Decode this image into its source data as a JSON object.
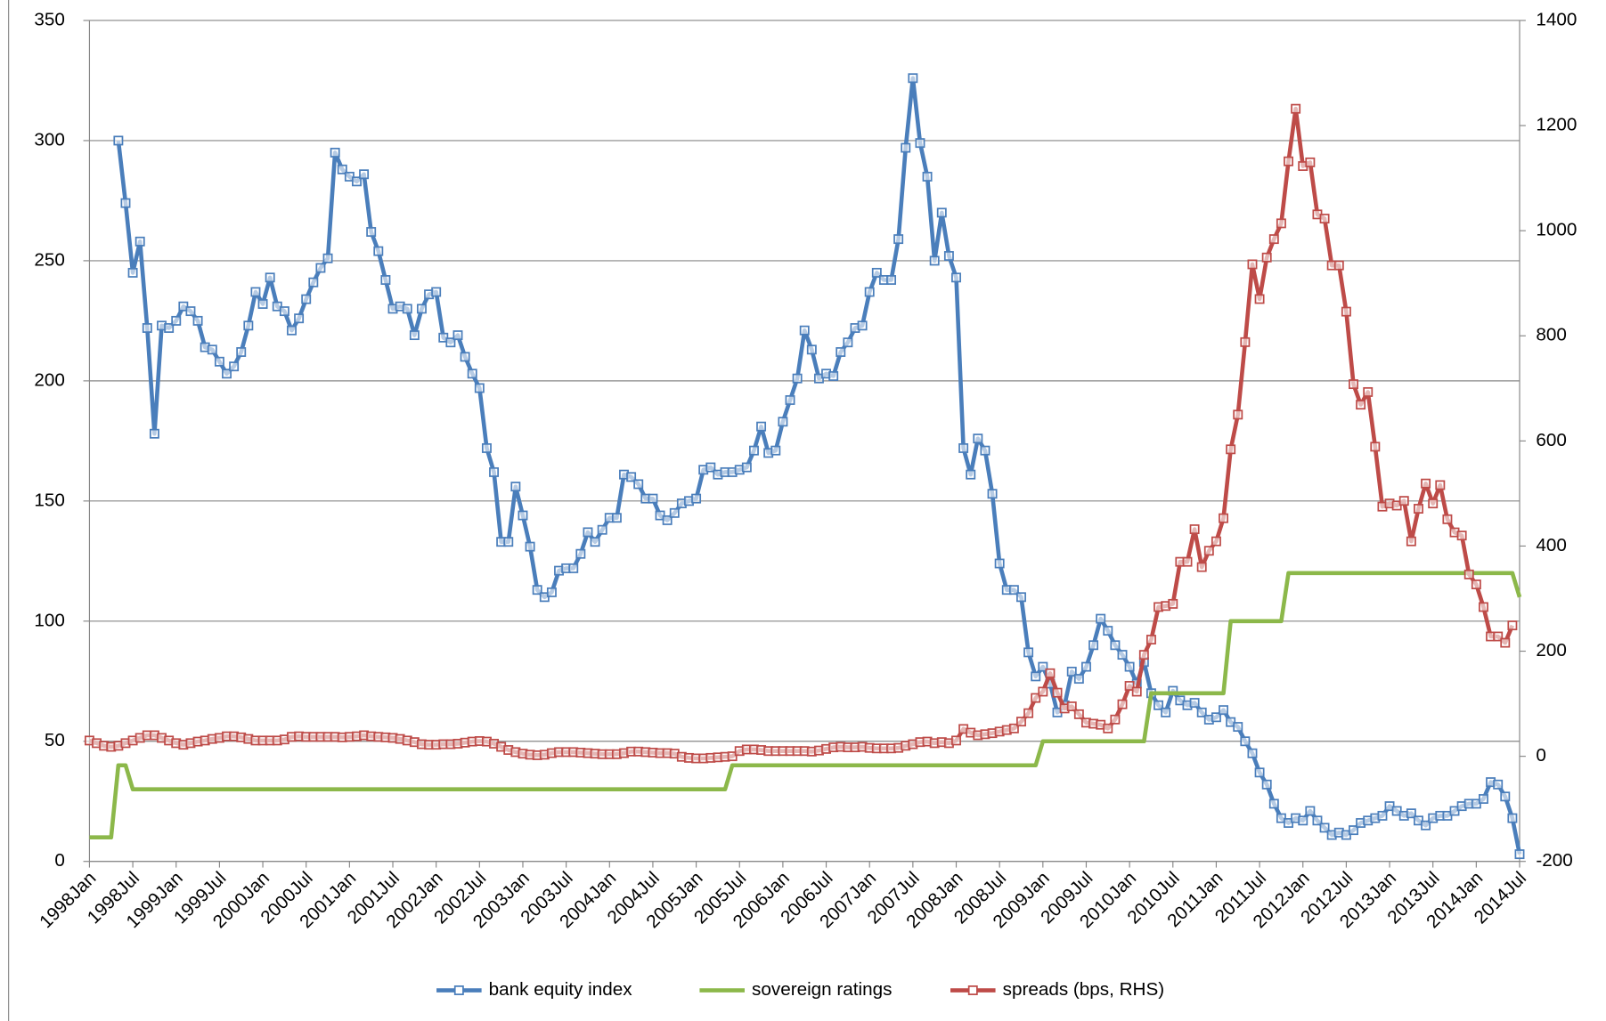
{
  "chart_data": {
    "type": "line",
    "categories": [
      "1998Jan",
      null,
      null,
      null,
      null,
      null,
      "1998Jul",
      null,
      null,
      null,
      null,
      null,
      "1999Jan",
      null,
      null,
      null,
      null,
      null,
      "1999Jul",
      null,
      null,
      null,
      null,
      null,
      "2000Jan",
      null,
      null,
      null,
      null,
      null,
      "2000Jul",
      null,
      null,
      null,
      null,
      null,
      "2001Jan",
      null,
      null,
      null,
      null,
      null,
      "2001Jul",
      null,
      null,
      null,
      null,
      null,
      "2002Jan",
      null,
      null,
      null,
      null,
      null,
      "2002Jul",
      null,
      null,
      null,
      null,
      null,
      "2003Jan",
      null,
      null,
      null,
      null,
      null,
      "2003Jul",
      null,
      null,
      null,
      null,
      null,
      "2004Jan",
      null,
      null,
      null,
      null,
      null,
      "2004Jul",
      null,
      null,
      null,
      null,
      null,
      "2005Jan",
      null,
      null,
      null,
      null,
      null,
      "2005Jul",
      null,
      null,
      null,
      null,
      null,
      "2006Jan",
      null,
      null,
      null,
      null,
      null,
      "2006Jul",
      null,
      null,
      null,
      null,
      null,
      "2007Jan",
      null,
      null,
      null,
      null,
      null,
      "2007Jul",
      null,
      null,
      null,
      null,
      null,
      "2008Jan",
      null,
      null,
      null,
      null,
      null,
      "2008Jul",
      null,
      null,
      null,
      null,
      null,
      "2009Jan",
      null,
      null,
      null,
      null,
      null,
      "2009Jul",
      null,
      null,
      null,
      null,
      null,
      "2010Jan",
      null,
      null,
      null,
      null,
      null,
      "2010Jul",
      null,
      null,
      null,
      null,
      null,
      "2011Jan",
      null,
      null,
      null,
      null,
      null,
      "2011Jul",
      null,
      null,
      null,
      null,
      null,
      "2012Jan",
      null,
      null,
      null,
      null,
      null,
      "2012Jul",
      null,
      null,
      null,
      null,
      null,
      "2013Jan",
      null,
      null,
      null,
      null,
      null,
      "2013Jul",
      null,
      null,
      null,
      null,
      null,
      "2014Jan",
      null,
      null,
      null,
      null,
      null,
      "2014Jul"
    ],
    "series": [
      {
        "name": "bank equity index",
        "color": "#4a7ebb",
        "marker": "square",
        "values": [
          null,
          null,
          null,
          null,
          300,
          274,
          245,
          258,
          222,
          178,
          223,
          222,
          225,
          231,
          229,
          225,
          214,
          213,
          208,
          203,
          206,
          212,
          223,
          237,
          232,
          243,
          231,
          229,
          221,
          226,
          234,
          241,
          247,
          251,
          295,
          288,
          285,
          283,
          286,
          262,
          254,
          242,
          230,
          231,
          230,
          219,
          230,
          236,
          237,
          218,
          216,
          219,
          210,
          203,
          197,
          172,
          162,
          133,
          133,
          156,
          144,
          131,
          113,
          110,
          112,
          121,
          122,
          122,
          128,
          137,
          133,
          138,
          143,
          143,
          161,
          160,
          157,
          151,
          151,
          144,
          142,
          145,
          149,
          150,
          151,
          163,
          164,
          161,
          162,
          162,
          163,
          164,
          171,
          181,
          170,
          171,
          183,
          192,
          201,
          221,
          213,
          201,
          203,
          202,
          212,
          216,
          222,
          223,
          237,
          245,
          242,
          242,
          259,
          297,
          326,
          299,
          285,
          250,
          270,
          252,
          243,
          172,
          161,
          176,
          171,
          153,
          124,
          113,
          113,
          110,
          87,
          77,
          81,
          74,
          62,
          65,
          79,
          76,
          81,
          90,
          101,
          96,
          90,
          86,
          81,
          74,
          83,
          70,
          65,
          62,
          71,
          67,
          65,
          66,
          62,
          59,
          60,
          63,
          58,
          56,
          50,
          45,
          37,
          32,
          24,
          18,
          16,
          18,
          17,
          21,
          17,
          14,
          11,
          12,
          11,
          13,
          16,
          17,
          18,
          19,
          23,
          21,
          19,
          20,
          17,
          15,
          18,
          19,
          19,
          21,
          23,
          24,
          24,
          26,
          33,
          32,
          27,
          18,
          3
        ]
      },
      {
        "name": "sovereign ratings",
        "color": "#8cb84a",
        "values": [
          10,
          10,
          10,
          10,
          40,
          40,
          30,
          30,
          30,
          30,
          30,
          30,
          30,
          30,
          30,
          30,
          30,
          30,
          30,
          30,
          30,
          30,
          30,
          30,
          30,
          30,
          30,
          30,
          30,
          30,
          30,
          30,
          30,
          30,
          30,
          30,
          30,
          30,
          30,
          30,
          30,
          30,
          30,
          30,
          30,
          30,
          30,
          30,
          30,
          30,
          30,
          30,
          30,
          30,
          30,
          30,
          30,
          30,
          30,
          30,
          30,
          30,
          30,
          30,
          30,
          30,
          30,
          30,
          30,
          30,
          30,
          30,
          30,
          30,
          30,
          30,
          30,
          30,
          30,
          30,
          30,
          30,
          30,
          30,
          30,
          30,
          30,
          30,
          30,
          40,
          40,
          40,
          40,
          40,
          40,
          40,
          40,
          40,
          40,
          40,
          40,
          40,
          40,
          40,
          40,
          40,
          40,
          40,
          40,
          40,
          40,
          40,
          40,
          40,
          40,
          40,
          40,
          40,
          40,
          40,
          40,
          40,
          40,
          40,
          40,
          40,
          40,
          40,
          40,
          40,
          40,
          40,
          50,
          50,
          50,
          50,
          50,
          50,
          50,
          50,
          50,
          50,
          50,
          50,
          50,
          50,
          50,
          70,
          70,
          70,
          70,
          70,
          70,
          70,
          70,
          70,
          70,
          70,
          100,
          100,
          100,
          100,
          100,
          100,
          100,
          100,
          120,
          120,
          120,
          120,
          120,
          120,
          120,
          120,
          120,
          120,
          120,
          120,
          120,
          120,
          120,
          120,
          120,
          120,
          120,
          120,
          120,
          120,
          120,
          120,
          120,
          120,
          120,
          120,
          120,
          120,
          120,
          120,
          110
        ]
      },
      {
        "name": "spreads (bps, RHS)",
        "color": "#be4b48",
        "marker": "square",
        "axis": "y2",
        "values": [
          30,
          25,
          20,
          18,
          20,
          25,
          30,
          35,
          40,
          40,
          35,
          30,
          25,
          22,
          25,
          28,
          30,
          33,
          35,
          38,
          38,
          36,
          33,
          30,
          30,
          30,
          30,
          32,
          37,
          38,
          37,
          37,
          37,
          37,
          37,
          36,
          37,
          38,
          40,
          38,
          37,
          36,
          35,
          33,
          30,
          27,
          23,
          22,
          22,
          23,
          23,
          24,
          26,
          28,
          29,
          28,
          24,
          18,
          12,
          8,
          5,
          3,
          2,
          3,
          6,
          8,
          8,
          8,
          7,
          6,
          5,
          4,
          4,
          4,
          6,
          9,
          9,
          8,
          7,
          6,
          6,
          5,
          -1,
          -3,
          -4,
          -4,
          -3,
          -2,
          -1,
          0,
          10,
          13,
          13,
          12,
          10,
          10,
          10,
          10,
          10,
          10,
          9,
          11,
          14,
          17,
          18,
          17,
          17,
          18,
          16,
          15,
          15,
          15,
          16,
          20,
          23,
          27,
          28,
          25,
          27,
          25,
          30,
          52,
          45,
          40,
          42,
          44,
          47,
          50,
          53,
          66,
          82,
          111,
          123,
          158,
          121,
          91,
          95,
          80,
          64,
          62,
          60,
          53,
          70,
          99,
          134,
          123,
          193,
          222,
          284,
          286,
          290,
          370,
          370,
          432,
          360,
          391,
          409,
          453,
          584,
          650,
          788,
          936,
          870,
          949,
          984,
          1014,
          1132,
          1232,
          1123,
          1130,
          1031,
          1023,
          934,
          934,
          846,
          708,
          669,
          693,
          589,
          475,
          481,
          477,
          486,
          409,
          471,
          519,
          481,
          516,
          451,
          426,
          420,
          346,
          327,
          284,
          228,
          228,
          216,
          249,
          null
        ]
      }
    ],
    "ylim": [
      0,
      350
    ],
    "yticks": [
      0,
      50,
      100,
      150,
      200,
      250,
      300,
      350
    ],
    "y2lim": [
      -200,
      1400
    ],
    "y2ticks": [
      -200,
      0,
      200,
      400,
      600,
      800,
      1000,
      1200,
      1400
    ],
    "grid": true,
    "legend": "bottom"
  }
}
